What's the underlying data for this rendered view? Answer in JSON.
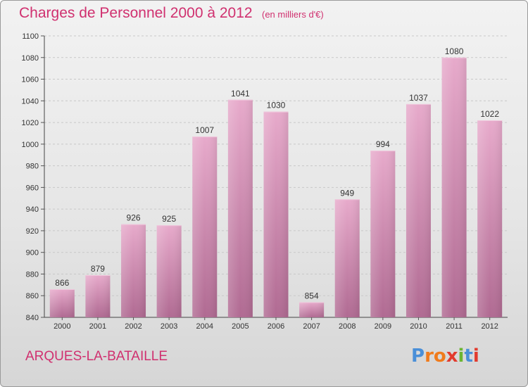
{
  "header": {
    "title": "Charges de Personnel 2000 à 2012",
    "unit": "(en milliers d'€)"
  },
  "footer": {
    "place": "ARQUES-LA-BATAILLE",
    "brand": "Proxiti",
    "brand_letters": [
      "P",
      "r",
      "o",
      "x",
      "i",
      "t",
      "i"
    ],
    "brand_colors": [
      "#4a8fd8",
      "#f07b1c",
      "#f07b1c",
      "#e23b2e",
      "#6bb532",
      "#4a8fd8",
      "#e23b2e"
    ]
  },
  "colors": {
    "accent": "#d0306f",
    "bar": "#cf87ad",
    "grid": "#c8c8c8"
  },
  "chart_data": {
    "type": "bar",
    "categories": [
      "2000",
      "2001",
      "2002",
      "2003",
      "2004",
      "2005",
      "2006",
      "2007",
      "2008",
      "2009",
      "2010",
      "2011",
      "2012"
    ],
    "values": [
      866,
      879,
      926,
      925,
      1007,
      1041,
      1030,
      854,
      949,
      994,
      1037,
      1080,
      1022
    ],
    "value_labels": [
      "866",
      "879",
      "926",
      "925",
      "1007",
      "1041",
      "1030",
      "854",
      "949",
      "994",
      "1037",
      "1080",
      "1022"
    ],
    "title": "Charges de Personnel 2000 à 2012",
    "subtitle": "(en milliers d'€)",
    "xlabel": "",
    "ylabel": "",
    "ylim": [
      840,
      1100
    ],
    "yticks": [
      "840",
      "860",
      "880",
      "900",
      "920",
      "940",
      "960",
      "980",
      "1000",
      "1020",
      "1040",
      "1060",
      "1080",
      "1100"
    ],
    "grid": true
  }
}
